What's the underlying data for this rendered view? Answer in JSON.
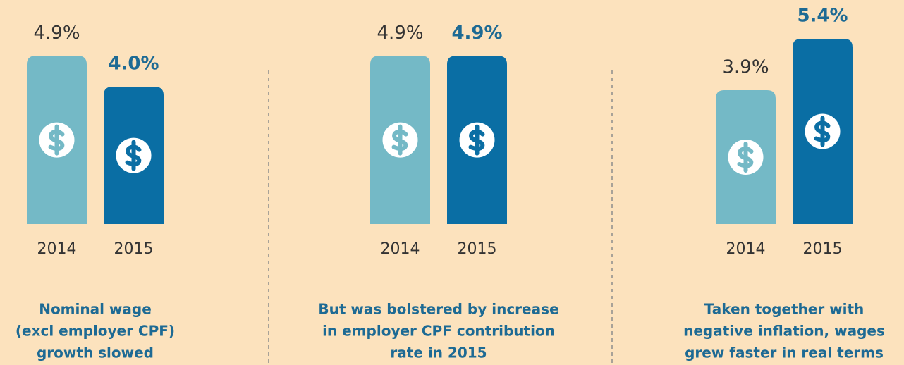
{
  "chart_data": [
    {
      "type": "bar",
      "categories": [
        "2014",
        "2015"
      ],
      "values": [
        4.9,
        4.0
      ],
      "value_labels": [
        "4.9%",
        "4.0%"
      ],
      "colors": [
        "#74b9c6",
        "#0a6ea4"
      ],
      "caption": [
        "Nominal wage",
        "(excl employer CPF)",
        "growth slowed"
      ]
    },
    {
      "type": "bar",
      "categories": [
        "2014",
        "2015"
      ],
      "values": [
        4.9,
        4.9
      ],
      "value_labels": [
        "4.9%",
        "4.9%"
      ],
      "colors": [
        "#74b9c6",
        "#0a6ea4"
      ],
      "caption": [
        "But was bolstered by increase",
        "in employer CPF contribution",
        "rate in 2015"
      ]
    },
    {
      "type": "bar",
      "categories": [
        "2014",
        "2015"
      ],
      "values": [
        3.9,
        5.4
      ],
      "value_labels": [
        "3.9%",
        "5.4%"
      ],
      "colors": [
        "#74b9c6",
        "#0a6ea4"
      ],
      "caption": [
        "Taken together with",
        "negative inflation, wages",
        "grew faster in real terms"
      ]
    }
  ]
}
